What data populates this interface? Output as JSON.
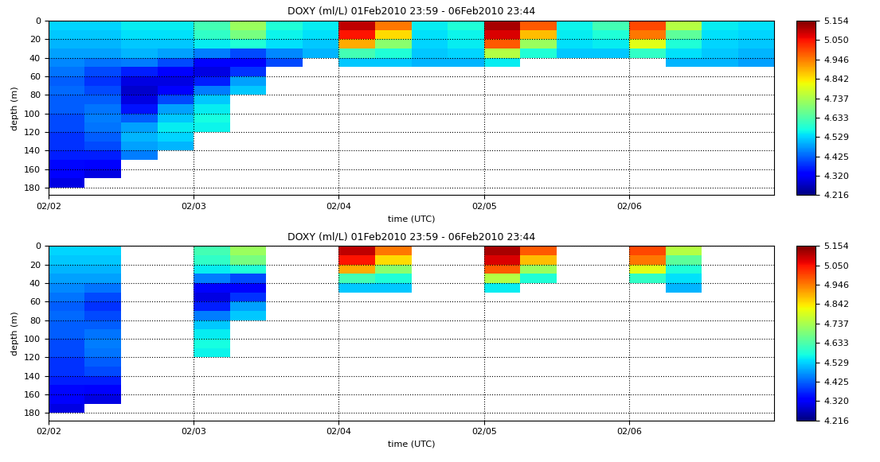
{
  "chart_data": [
    {
      "type": "heatmap",
      "title": "DOXY (ml/L) 01Feb2010 23:59 - 06Feb2010 23:44",
      "x_label": "time (UTC)",
      "y_label": "depth (m)",
      "x": [
        2.125,
        2.375,
        2.625,
        2.875,
        3.125,
        3.375,
        3.625,
        3.875,
        4.125,
        4.375,
        4.625,
        4.875,
        5.125,
        5.375,
        5.625,
        5.875,
        6.125,
        6.375,
        6.625,
        6.875
      ],
      "y": [
        5,
        15,
        25,
        35,
        45,
        55,
        65,
        75,
        85,
        95,
        105,
        115,
        125,
        135,
        145,
        155,
        165,
        175
      ],
      "values": [
        [
          4.53,
          4.53,
          4.55,
          4.55,
          4.62,
          4.72,
          4.58,
          4.55,
          5.1,
          4.95,
          4.55,
          4.58,
          5.12,
          4.98,
          4.56,
          4.62,
          5.0,
          4.75,
          4.55,
          4.54
        ],
        [
          4.52,
          4.52,
          4.54,
          4.54,
          4.6,
          4.68,
          4.56,
          4.54,
          5.05,
          4.85,
          4.54,
          4.56,
          5.08,
          4.88,
          4.55,
          4.58,
          4.95,
          4.65,
          4.54,
          4.53
        ],
        [
          4.5,
          4.5,
          4.52,
          4.52,
          4.55,
          4.58,
          4.54,
          4.52,
          4.9,
          4.7,
          4.53,
          4.55,
          4.98,
          4.72,
          4.54,
          4.55,
          4.8,
          4.58,
          4.53,
          4.52
        ],
        [
          4.48,
          4.48,
          4.5,
          4.48,
          4.45,
          4.4,
          4.46,
          4.5,
          4.62,
          4.58,
          4.52,
          4.53,
          4.75,
          4.58,
          4.52,
          4.52,
          4.6,
          4.54,
          4.52,
          4.5
        ],
        [
          4.46,
          4.44,
          4.45,
          4.4,
          4.33,
          4.32,
          4.4,
          null,
          4.52,
          4.52,
          4.5,
          4.5,
          4.55,
          null,
          null,
          null,
          null,
          4.5,
          4.5,
          4.48
        ],
        [
          4.44,
          4.4,
          4.36,
          4.32,
          4.3,
          4.38,
          null,
          null,
          null,
          null,
          null,
          null,
          null,
          null,
          null,
          null,
          null,
          null,
          null,
          null
        ],
        [
          4.42,
          4.38,
          4.3,
          4.3,
          4.36,
          4.48,
          null,
          null,
          null,
          null,
          null,
          null,
          null,
          null,
          null,
          null,
          null,
          null,
          null,
          null
        ],
        [
          4.43,
          4.4,
          4.28,
          4.33,
          4.45,
          4.52,
          null,
          null,
          null,
          null,
          null,
          null,
          null,
          null,
          null,
          null,
          null,
          null,
          null,
          null
        ],
        [
          4.42,
          4.42,
          4.3,
          4.4,
          4.52,
          null,
          null,
          null,
          null,
          null,
          null,
          null,
          null,
          null,
          null,
          null,
          null,
          null,
          null,
          null
        ],
        [
          4.42,
          4.44,
          4.35,
          4.48,
          4.55,
          null,
          null,
          null,
          null,
          null,
          null,
          null,
          null,
          null,
          null,
          null,
          null,
          null,
          null,
          null
        ],
        [
          4.4,
          4.45,
          4.42,
          4.52,
          4.57,
          null,
          null,
          null,
          null,
          null,
          null,
          null,
          null,
          null,
          null,
          null,
          null,
          null,
          null,
          null
        ],
        [
          4.4,
          4.44,
          4.48,
          4.55,
          4.56,
          null,
          null,
          null,
          null,
          null,
          null,
          null,
          null,
          null,
          null,
          null,
          null,
          null,
          null,
          null
        ],
        [
          4.38,
          4.42,
          4.5,
          4.53,
          null,
          null,
          null,
          null,
          null,
          null,
          null,
          null,
          null,
          null,
          null,
          null,
          null,
          null,
          null,
          null
        ],
        [
          4.38,
          4.4,
          4.48,
          4.5,
          null,
          null,
          null,
          null,
          null,
          null,
          null,
          null,
          null,
          null,
          null,
          null,
          null,
          null,
          null,
          null
        ],
        [
          4.36,
          4.36,
          4.45,
          null,
          null,
          null,
          null,
          null,
          null,
          null,
          null,
          null,
          null,
          null,
          null,
          null,
          null,
          null,
          null,
          null
        ],
        [
          4.34,
          4.32,
          null,
          null,
          null,
          null,
          null,
          null,
          null,
          null,
          null,
          null,
          null,
          null,
          null,
          null,
          null,
          null,
          null,
          null
        ],
        [
          4.32,
          4.3,
          null,
          null,
          null,
          null,
          null,
          null,
          null,
          null,
          null,
          null,
          null,
          null,
          null,
          null,
          null,
          null,
          null,
          null
        ],
        [
          4.3,
          null,
          null,
          null,
          null,
          null,
          null,
          null,
          null,
          null,
          null,
          null,
          null,
          null,
          null,
          null,
          null,
          null,
          null,
          null
        ]
      ],
      "xlim": [
        2,
        7
      ],
      "xticks": [
        {
          "value": 2,
          "label": "02/02"
        },
        {
          "value": 3,
          "label": "02/03"
        },
        {
          "value": 4,
          "label": "02/04"
        },
        {
          "value": 5,
          "label": "02/05"
        },
        {
          "value": 6,
          "label": "02/06"
        }
      ],
      "ylim": [
        188,
        0
      ],
      "yticks": [
        0,
        20,
        40,
        60,
        80,
        100,
        120,
        140,
        160,
        180
      ],
      "color_range": [
        4.216,
        5.154
      ],
      "color_ticks": [
        4.216,
        {
          "value": 4.32,
          "label": "4.320"
        },
        4.425,
        4.529,
        4.633,
        4.737,
        4.842,
        4.946,
        {
          "value": 5.05,
          "label": "5.050"
        },
        5.154
      ],
      "grid": true
    },
    {
      "type": "heatmap",
      "title": "DOXY (ml/L) 01Feb2010 23:59 - 06Feb2010 23:44",
      "x_label": "time (UTC)",
      "y_label": "depth (m)",
      "x": [
        2.125,
        2.375,
        2.625,
        2.875,
        3.125,
        3.375,
        3.625,
        3.875,
        4.125,
        4.375,
        4.625,
        4.875,
        5.125,
        5.375,
        5.625,
        5.875,
        6.125,
        6.375,
        6.625,
        6.875
      ],
      "y": [
        5,
        15,
        25,
        35,
        45,
        55,
        65,
        75,
        85,
        95,
        105,
        115,
        125,
        135,
        145,
        155,
        165,
        175
      ],
      "values": [
        [
          4.53,
          4.53,
          null,
          null,
          4.62,
          4.72,
          null,
          null,
          5.1,
          4.95,
          null,
          null,
          5.12,
          4.98,
          null,
          null,
          5.0,
          4.75,
          null,
          null
        ],
        [
          4.52,
          4.52,
          null,
          null,
          4.6,
          4.68,
          null,
          null,
          5.05,
          4.85,
          null,
          null,
          5.08,
          4.88,
          null,
          null,
          4.95,
          4.65,
          null,
          null
        ],
        [
          4.5,
          4.5,
          null,
          null,
          4.55,
          4.58,
          null,
          null,
          4.9,
          4.7,
          null,
          null,
          4.98,
          4.72,
          null,
          null,
          4.8,
          4.58,
          null,
          null
        ],
        [
          4.48,
          4.48,
          null,
          null,
          4.45,
          4.4,
          null,
          null,
          4.62,
          4.58,
          null,
          null,
          4.75,
          4.58,
          null,
          null,
          4.6,
          4.54,
          null,
          null
        ],
        [
          4.46,
          4.44,
          null,
          null,
          4.33,
          4.32,
          null,
          null,
          4.52,
          4.52,
          null,
          null,
          4.55,
          null,
          null,
          null,
          null,
          4.5,
          null,
          null
        ],
        [
          4.44,
          4.4,
          null,
          null,
          4.3,
          4.38,
          null,
          null,
          null,
          null,
          null,
          null,
          null,
          null,
          null,
          null,
          null,
          null,
          null,
          null
        ],
        [
          4.42,
          4.38,
          null,
          null,
          4.36,
          4.48,
          null,
          null,
          null,
          null,
          null,
          null,
          null,
          null,
          null,
          null,
          null,
          null,
          null,
          null
        ],
        [
          4.43,
          4.4,
          null,
          null,
          4.45,
          4.52,
          null,
          null,
          null,
          null,
          null,
          null,
          null,
          null,
          null,
          null,
          null,
          null,
          null,
          null
        ],
        [
          4.42,
          4.42,
          null,
          null,
          4.52,
          null,
          null,
          null,
          null,
          null,
          null,
          null,
          null,
          null,
          null,
          null,
          null,
          null,
          null,
          null
        ],
        [
          4.42,
          4.44,
          null,
          null,
          4.55,
          null,
          null,
          null,
          null,
          null,
          null,
          null,
          null,
          null,
          null,
          null,
          null,
          null,
          null,
          null
        ],
        [
          4.4,
          4.45,
          null,
          null,
          4.57,
          null,
          null,
          null,
          null,
          null,
          null,
          null,
          null,
          null,
          null,
          null,
          null,
          null,
          null,
          null
        ],
        [
          4.4,
          4.44,
          null,
          null,
          4.56,
          null,
          null,
          null,
          null,
          null,
          null,
          null,
          null,
          null,
          null,
          null,
          null,
          null,
          null,
          null
        ],
        [
          4.38,
          4.42,
          null,
          null,
          null,
          null,
          null,
          null,
          null,
          null,
          null,
          null,
          null,
          null,
          null,
          null,
          null,
          null,
          null,
          null
        ],
        [
          4.38,
          4.4,
          null,
          null,
          null,
          null,
          null,
          null,
          null,
          null,
          null,
          null,
          null,
          null,
          null,
          null,
          null,
          null,
          null,
          null
        ],
        [
          4.36,
          4.36,
          null,
          null,
          null,
          null,
          null,
          null,
          null,
          null,
          null,
          null,
          null,
          null,
          null,
          null,
          null,
          null,
          null,
          null
        ],
        [
          4.34,
          4.32,
          null,
          null,
          null,
          null,
          null,
          null,
          null,
          null,
          null,
          null,
          null,
          null,
          null,
          null,
          null,
          null,
          null,
          null
        ],
        [
          4.32,
          4.3,
          null,
          null,
          null,
          null,
          null,
          null,
          null,
          null,
          null,
          null,
          null,
          null,
          null,
          null,
          null,
          null,
          null,
          null
        ],
        [
          4.3,
          null,
          null,
          null,
          null,
          null,
          null,
          null,
          null,
          null,
          null,
          null,
          null,
          null,
          null,
          null,
          null,
          null,
          null,
          null
        ]
      ],
      "xlim": [
        2,
        7
      ],
      "xticks": [
        {
          "value": 2,
          "label": "02/02"
        },
        {
          "value": 3,
          "label": "02/03"
        },
        {
          "value": 4,
          "label": "02/04"
        },
        {
          "value": 5,
          "label": "02/05"
        },
        {
          "value": 6,
          "label": "02/06"
        }
      ],
      "ylim": [
        188,
        0
      ],
      "yticks": [
        0,
        20,
        40,
        60,
        80,
        100,
        120,
        140,
        160,
        180
      ],
      "color_range": [
        4.216,
        5.154
      ],
      "color_ticks": [
        4.216,
        {
          "value": 4.32,
          "label": "4.320"
        },
        4.425,
        4.529,
        4.633,
        4.737,
        4.842,
        4.946,
        {
          "value": 5.05,
          "label": "5.050"
        },
        5.154
      ],
      "grid": true
    }
  ]
}
